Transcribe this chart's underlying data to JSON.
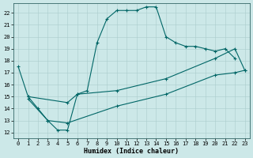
{
  "title": "",
  "xlabel": "Humidex (Indice chaleur)",
  "background_color": "#cce8e8",
  "grid_color": "#aacccc",
  "line_color": "#006666",
  "xlim": [
    -0.5,
    23.5
  ],
  "ylim": [
    11.5,
    22.8
  ],
  "xticks": [
    0,
    1,
    2,
    3,
    4,
    5,
    6,
    7,
    8,
    9,
    10,
    11,
    12,
    13,
    14,
    15,
    16,
    17,
    18,
    19,
    20,
    21,
    22,
    23
  ],
  "yticks": [
    12,
    13,
    14,
    15,
    16,
    17,
    18,
    19,
    20,
    21,
    22
  ],
  "curve1_x": [
    0,
    1,
    2,
    3,
    4,
    5,
    6,
    7,
    8,
    9,
    10,
    11,
    12,
    13,
    14,
    15,
    16,
    17,
    18,
    19,
    20,
    21,
    22
  ],
  "curve1_y": [
    17.5,
    15.0,
    14.0,
    13.0,
    12.2,
    12.2,
    15.2,
    15.5,
    19.5,
    21.5,
    22.2,
    22.2,
    22.2,
    22.5,
    22.5,
    20.0,
    19.5,
    19.2,
    19.2,
    19.0,
    18.8,
    19.0,
    18.2
  ],
  "curve2_x": [
    1,
    5,
    6,
    10,
    15,
    20,
    22,
    23
  ],
  "curve2_y": [
    15.0,
    14.5,
    15.2,
    15.5,
    16.5,
    18.2,
    19.0,
    17.2
  ],
  "curve3_x": [
    1,
    3,
    5,
    10,
    15,
    20,
    22,
    23
  ],
  "curve3_y": [
    14.8,
    13.0,
    12.8,
    14.2,
    15.2,
    16.8,
    17.0,
    17.2
  ],
  "tick_fontsize": 5.0,
  "xlabel_fontsize": 6.0
}
